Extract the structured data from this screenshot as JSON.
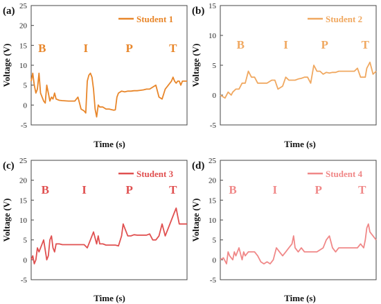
{
  "chart_data": [
    {
      "type": "line",
      "panel_label": "(a)",
      "xlabel": "Time (s)",
      "ylabel": "Voltage (V)",
      "ylim": [
        -5,
        25
      ],
      "yticks": [
        -5,
        0,
        5,
        10,
        15,
        20,
        25
      ],
      "xlim": [
        0,
        100
      ],
      "grid": false,
      "legend": "top-right",
      "series": [
        {
          "name": "Student 1",
          "color": "#e8862a",
          "x": [
            0,
            1,
            2,
            3,
            4,
            5,
            6,
            7,
            8,
            9,
            10,
            11,
            12,
            13,
            14,
            15,
            16,
            18,
            20,
            24,
            28,
            30,
            31,
            32,
            34,
            35,
            36,
            37,
            38,
            39,
            40,
            41,
            42,
            43,
            44,
            46,
            48,
            50,
            52,
            53,
            54,
            55,
            56,
            58,
            60,
            62,
            64,
            66,
            68,
            70,
            72,
            74,
            76,
            78,
            80,
            82,
            84,
            86,
            88,
            90,
            91,
            92,
            93,
            94,
            95,
            96,
            97,
            98,
            99,
            100
          ],
          "y": [
            6,
            8,
            5,
            3,
            4,
            8,
            3,
            2,
            1,
            0.5,
            5,
            3,
            1,
            2,
            1.5,
            3,
            1.5,
            1.2,
            1.1,
            1.0,
            1.0,
            2,
            0.5,
            -1,
            -1.5,
            -2,
            6,
            7.5,
            8,
            7,
            4,
            -1,
            -3,
            0,
            -0.5,
            -0.5,
            -1,
            -1,
            -1.2,
            -1.3,
            -1.2,
            2,
            3,
            3.5,
            3.3,
            3.5,
            3.5,
            3.6,
            3.6,
            3.7,
            3.8,
            4,
            4,
            4.5,
            5,
            2,
            1.5,
            4,
            5,
            6,
            7,
            6,
            5.5,
            6,
            6,
            5,
            6,
            6,
            6,
            6
          ]
        }
      ],
      "annotations": [
        "B",
        "I",
        "P",
        "T"
      ]
    },
    {
      "type": "line",
      "panel_label": "(b)",
      "xlabel": "Time (s)",
      "ylabel": "Voltage (V)",
      "ylim": [
        -5,
        15
      ],
      "yticks": [
        -5,
        0,
        5,
        10,
        15
      ],
      "xlim": [
        0,
        100
      ],
      "grid": false,
      "legend": "top-right",
      "series": [
        {
          "name": "Student 2",
          "color": "#f0a860",
          "x": [
            0,
            3,
            5,
            7,
            8,
            10,
            12,
            14,
            16,
            18,
            20,
            22,
            24,
            26,
            28,
            30,
            33,
            35,
            37,
            40,
            42,
            44,
            46,
            48,
            50,
            52,
            54,
            56,
            58,
            60,
            62,
            64,
            66,
            68,
            70,
            72,
            74,
            76,
            78,
            80,
            82,
            84,
            86,
            88,
            90,
            92,
            93,
            94,
            95,
            96,
            97,
            98,
            100
          ],
          "y": [
            0,
            -0.5,
            0.5,
            0,
            0.5,
            1,
            1,
            2,
            2,
            4,
            3,
            3,
            2,
            2,
            2,
            2,
            2.5,
            2.5,
            1,
            1.5,
            3,
            2.5,
            2.5,
            2.5,
            2.7,
            2.8,
            3,
            3,
            2,
            5,
            4,
            4,
            3.5,
            3.8,
            3.7,
            3.8,
            3.8,
            4,
            4,
            4,
            4,
            4,
            4,
            4.5,
            3,
            3,
            3,
            4.5,
            5,
            5.5,
            4.5,
            3.5,
            4
          ]
        }
      ],
      "annotations": [
        "B",
        "I",
        "P",
        "T"
      ]
    },
    {
      "type": "line",
      "panel_label": "(c)",
      "xlabel": "Time (s)",
      "ylabel": "Voltage (V)",
      "ylim": [
        -5,
        25
      ],
      "yticks": [
        -5,
        0,
        5,
        10,
        15,
        20,
        25
      ],
      "xlim": [
        0,
        100
      ],
      "grid": false,
      "legend": "top-right",
      "series": [
        {
          "name": "Student 3",
          "color": "#e05050",
          "x": [
            0,
            1,
            2,
            3,
            4,
            5,
            7,
            8,
            10,
            11,
            12,
            13,
            14,
            15,
            16,
            18,
            20,
            24,
            28,
            30,
            32,
            34,
            36,
            38,
            40,
            42,
            43,
            44,
            46,
            48,
            50,
            52,
            54,
            56,
            58,
            59,
            60,
            62,
            64,
            66,
            68,
            70,
            72,
            74,
            76,
            78,
            80,
            82,
            84,
            86,
            88,
            90,
            92,
            93,
            94,
            95,
            96,
            98,
            100
          ],
          "y": [
            0,
            1,
            -1,
            0,
            3,
            2,
            4,
            5,
            0,
            1,
            5,
            6,
            3,
            2,
            4,
            4,
            3.8,
            3.8,
            3.8,
            3.8,
            3.8,
            3.8,
            3,
            5,
            7,
            4,
            6,
            4,
            4,
            3.7,
            3.7,
            3.7,
            3.7,
            3.5,
            6,
            9,
            8,
            6,
            6,
            6.3,
            6.2,
            6.2,
            6.2,
            6.2,
            6.5,
            5,
            5,
            6,
            9,
            6,
            8,
            10,
            12,
            13,
            11,
            9,
            9,
            9,
            9
          ]
        }
      ],
      "annotations": [
        "B",
        "I",
        "P",
        "T"
      ]
    },
    {
      "type": "line",
      "panel_label": "(d)",
      "xlabel": "Time (s)",
      "ylabel": "Voltage (V)",
      "ylim": [
        -5,
        25
      ],
      "yticks": [
        -5,
        0,
        5,
        10,
        15,
        20,
        25
      ],
      "xlim": [
        0,
        100
      ],
      "grid": false,
      "legend": "top-right",
      "series": [
        {
          "name": "Student 4",
          "color": "#f08888",
          "x": [
            0,
            2,
            4,
            5,
            6,
            8,
            9,
            10,
            12,
            14,
            15,
            16,
            18,
            20,
            22,
            24,
            26,
            28,
            30,
            32,
            34,
            36,
            38,
            40,
            42,
            44,
            46,
            47,
            48,
            50,
            52,
            54,
            56,
            58,
            60,
            62,
            64,
            66,
            68,
            70,
            72,
            74,
            76,
            78,
            80,
            82,
            84,
            86,
            88,
            90,
            92,
            93,
            94,
            95,
            96,
            98,
            100
          ],
          "y": [
            0,
            0.5,
            -1,
            2,
            1,
            0,
            2,
            1,
            3,
            0,
            2,
            1,
            2,
            2,
            2,
            1,
            -0.5,
            -1,
            -0.5,
            -1,
            0,
            3,
            2,
            1,
            2,
            3,
            4,
            6,
            3,
            2,
            3,
            2,
            2,
            2,
            2,
            2,
            2.5,
            3,
            5,
            6,
            3,
            2,
            3,
            3,
            3,
            3,
            3,
            3,
            3,
            4,
            3,
            5,
            8,
            9,
            7,
            6,
            5
          ]
        }
      ],
      "annotations": [
        "B",
        "I",
        "P",
        "T"
      ]
    }
  ]
}
